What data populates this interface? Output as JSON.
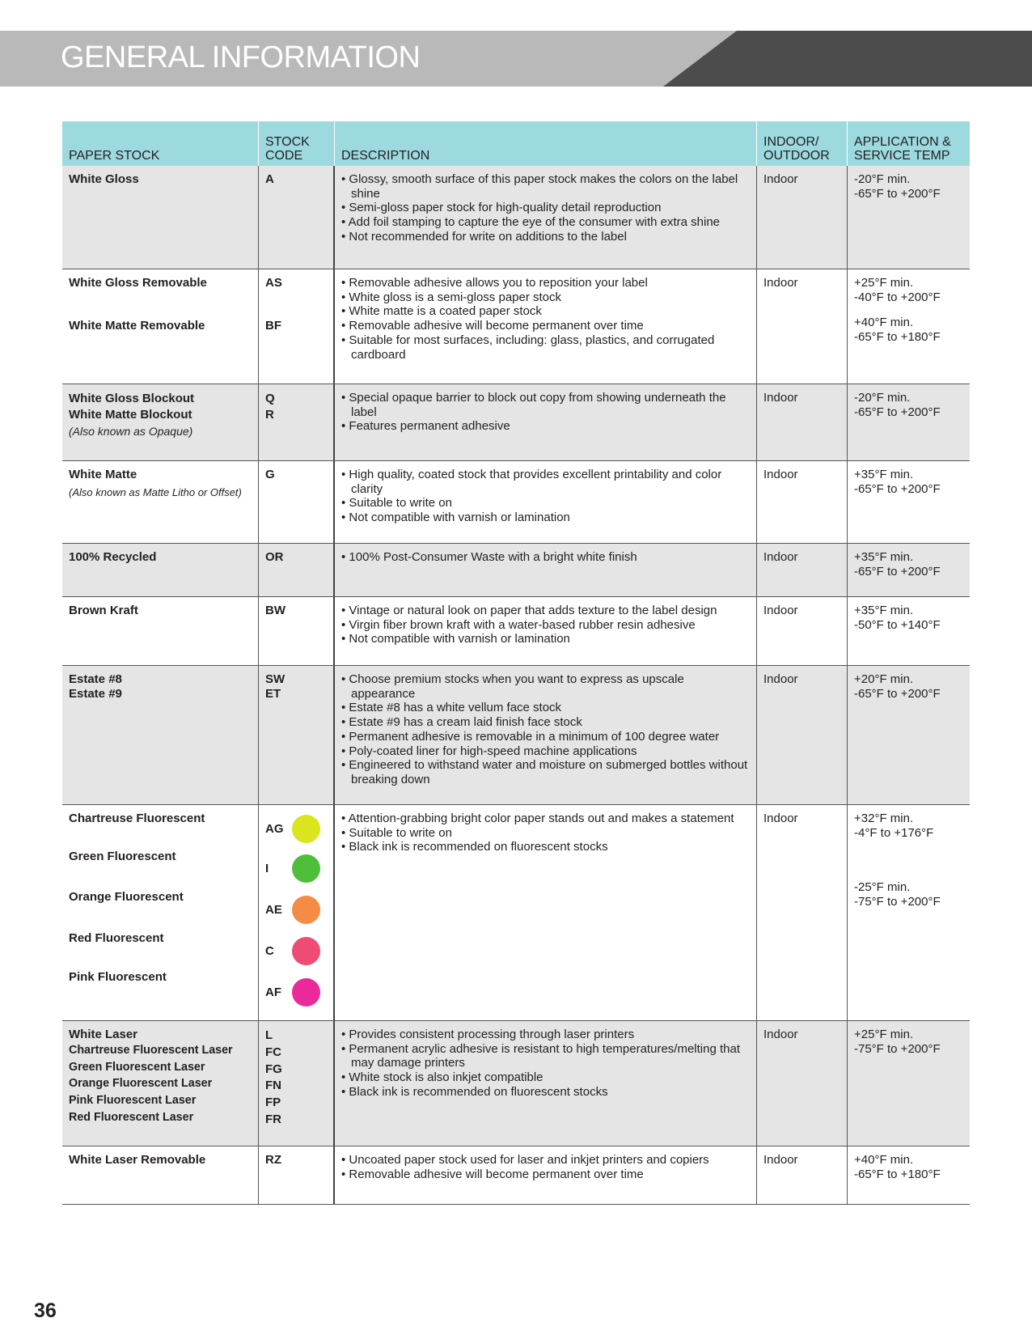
{
  "header": {
    "title": "GENERAL INFORMATION"
  },
  "table": {
    "columns": [
      "PAPER STOCK",
      "STOCK\nCODE",
      "DESCRIPTION",
      "INDOOR/\nOUTDOOR",
      "APPLICATION &\nSERVICE TEMP"
    ],
    "rows": [
      {
        "stocks": [
          {
            "name": "White Gloss"
          }
        ],
        "codes": [
          {
            "code": "A"
          }
        ],
        "desc": [
          "Glossy, smooth surface of this paper stock makes the colors on the label shine",
          "Semi-gloss paper stock for high-quality detail reproduction",
          "Add foil stamping to capture the eye of the consumer with extra shine",
          "Not recommended for write on additions to the label"
        ],
        "use": "Indoor",
        "temps": [
          [
            "-20°F min.",
            "-65°F to +200°F"
          ]
        ]
      },
      {
        "stocks": [
          {
            "name": "White Gloss Removable"
          },
          {
            "name": "White Matte Removable"
          }
        ],
        "codes": [
          {
            "code": "AS"
          },
          {
            "code": "BF"
          }
        ],
        "desc": [
          "Removable adhesive allows you to reposition your label",
          "White gloss is a semi-gloss paper stock",
          "White matte is a coated paper stock",
          "Removable adhesive will become permanent over time",
          "Suitable for most surfaces, including: glass, plastics, and corrugated cardboard"
        ],
        "use": "Indoor",
        "temps": [
          [
            "+25°F min.",
            "-40°F to +200°F"
          ],
          [
            "+40°F min.",
            "-65°F to +180°F"
          ]
        ]
      },
      {
        "stocks": [
          {
            "name": "White Gloss Blockout"
          },
          {
            "name": "White Matte Blockout",
            "note": "(Also known as Opaque)"
          }
        ],
        "codes": [
          {
            "code": "Q"
          },
          {
            "code": "R"
          }
        ],
        "desc": [
          "Special opaque barrier to block out copy from showing underneath the label",
          "Features permanent adhesive"
        ],
        "use": "Indoor",
        "temps": [
          [
            "-20°F min.",
            "-65°F to +200°F"
          ]
        ]
      },
      {
        "stocks": [
          {
            "name": "White Matte",
            "note": "(Also known as Matte Litho or Offset)"
          }
        ],
        "codes": [
          {
            "code": "G"
          }
        ],
        "desc": [
          "High quality, coated stock that provides excellent printability and color clarity",
          "Suitable to write on",
          "Not compatible with varnish or lamination"
        ],
        "use": "Indoor",
        "temps": [
          [
            "+35°F min.",
            "-65°F to +200°F"
          ]
        ]
      },
      {
        "stocks": [
          {
            "name": "100% Recycled"
          }
        ],
        "codes": [
          {
            "code": "OR"
          }
        ],
        "desc": [
          "100% Post-Consumer Waste with a bright white finish"
        ],
        "use": "Indoor",
        "temps": [
          [
            "+35°F min.",
            "-65°F to +200°F"
          ]
        ]
      },
      {
        "stocks": [
          {
            "name": "Brown Kraft"
          }
        ],
        "codes": [
          {
            "code": "BW"
          }
        ],
        "desc": [
          "Vintage or natural look on paper that adds texture to the label design",
          "Virgin fiber brown kraft with a water-based rubber resin adhesive",
          "Not compatible with varnish or lamination"
        ],
        "use": "Indoor",
        "temps": [
          [
            "+35°F min.",
            "-50°F to +140°F"
          ]
        ]
      },
      {
        "stocks": [
          {
            "name": "Estate #8"
          },
          {
            "name": "Estate #9"
          }
        ],
        "codes": [
          {
            "code": "SW"
          },
          {
            "code": "ET"
          }
        ],
        "desc": [
          "Choose premium stocks when you want to express as upscale appearance",
          "Estate #8 has a white vellum face stock",
          "Estate #9 has a cream laid finish face stock",
          "Permanent adhesive is removable in a minimum of 100 degree water",
          "Poly-coated liner for high-speed machine applications",
          "Engineered to withstand water and moisture on submerged bottles without breaking down"
        ],
        "use": "Indoor",
        "temps": [
          [
            "+20°F min.",
            "-65°F to +200°F"
          ]
        ]
      },
      {
        "stocks": [
          {
            "name": "Chartreuse Fluorescent"
          },
          {
            "name": "Green Fluorescent"
          },
          {
            "name": "Orange Fluorescent"
          },
          {
            "name": "Red Fluorescent"
          },
          {
            "name": "Pink Fluorescent"
          }
        ],
        "codes": [
          {
            "code": "AG",
            "color": "#dbe51e"
          },
          {
            "code": "I",
            "color": "#4fbf3a"
          },
          {
            "code": "AE",
            "color": "#f48c45"
          },
          {
            "code": "C",
            "color": "#ee4c75"
          },
          {
            "code": "AF",
            "color": "#ea2a9a"
          }
        ],
        "desc": [
          "Attention-grabbing bright color paper stands out and makes a statement",
          "Suitable to write on",
          "Black ink is recommended on fluorescent stocks"
        ],
        "use": "Indoor",
        "temps": [
          [
            "+32°F min.",
            "-4°F to +176°F"
          ],
          [
            "-25°F min.",
            "-75°F to +200°F"
          ]
        ]
      },
      {
        "stocks": [
          {
            "name": "White Laser"
          },
          {
            "name": "Chartreuse Fluorescent Laser"
          },
          {
            "name": "Green Fluorescent Laser"
          },
          {
            "name": "Orange Fluorescent Laser"
          },
          {
            "name": "Pink Fluorescent Laser"
          },
          {
            "name": "Red Fluorescent Laser"
          }
        ],
        "codes": [
          {
            "code": "L"
          },
          {
            "code": "FC"
          },
          {
            "code": "FG"
          },
          {
            "code": "FN"
          },
          {
            "code": "FP"
          },
          {
            "code": "FR"
          }
        ],
        "desc": [
          "Provides consistent processing through laser printers",
          "Permanent acrylic adhesive is resistant to high temperatures/melting that may damage printers",
          "White stock is also inkjet compatible",
          "Black ink is recommended on fluorescent stocks"
        ],
        "use": "Indoor",
        "temps": [
          [
            "+25°F min.",
            "-75°F to +200°F"
          ]
        ]
      },
      {
        "stocks": [
          {
            "name": "White Laser Removable"
          }
        ],
        "codes": [
          {
            "code": "RZ"
          }
        ],
        "desc": [
          "Uncoated paper stock used for laser and inkjet printers and copiers",
          "Removable adhesive will become permanent over time"
        ],
        "use": "Indoor",
        "temps": [
          [
            "+40°F min.",
            "-65°F to +180°F"
          ]
        ]
      }
    ]
  },
  "footer": {
    "page_number": "36"
  }
}
